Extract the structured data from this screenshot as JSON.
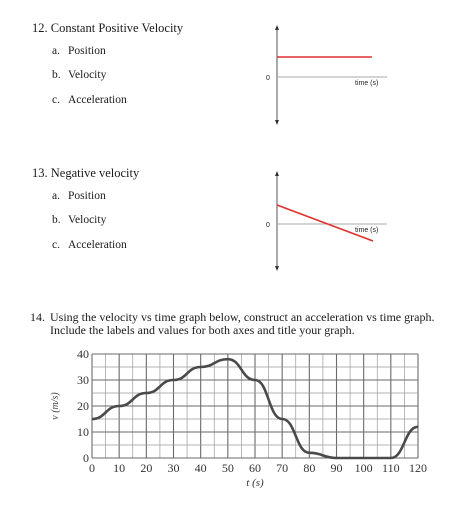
{
  "q12": {
    "title": "12. Constant Positive Velocity",
    "items": [
      {
        "letter": "a.",
        "text": "Position"
      },
      {
        "letter": "b.",
        "text": "Velocity"
      },
      {
        "letter": "c.",
        "text": "Acceleration"
      }
    ],
    "graph": {
      "origin_label": "0",
      "axis_label": "time (s)",
      "line_color": "#e03030"
    }
  },
  "q13": {
    "title": "13. Negative velocity",
    "items": [
      {
        "letter": "a.",
        "text": "Position"
      },
      {
        "letter": "b.",
        "text": "Velocity"
      },
      {
        "letter": "c.",
        "text": "Acceleration"
      }
    ],
    "graph": {
      "origin_label": "0",
      "axis_label": "time (s)",
      "line_color": "#e03030"
    }
  },
  "q14": {
    "number": "14.",
    "text": "Using the velocity vs time graph below, construct an acceleration vs time graph.  Include the labels and values for both axes and title your graph."
  },
  "chart_data": {
    "type": "line",
    "xlabel": "t (s)",
    "ylabel": "v (m/s)",
    "xlim": [
      0,
      120
    ],
    "ylim": [
      0,
      40
    ],
    "x_ticks": [
      "0",
      "10",
      "20",
      "30",
      "40",
      "50",
      "60",
      "70",
      "80",
      "90",
      "100",
      "110",
      "120"
    ],
    "y_ticks": [
      "0",
      "10",
      "20",
      "30",
      "40"
    ],
    "grid": true,
    "series": [
      {
        "x": [
          0,
          10,
          20,
          30,
          40,
          50,
          60,
          70,
          80,
          90,
          100,
          110,
          120
        ],
        "y": [
          15,
          20,
          25,
          30,
          35,
          38,
          30,
          15,
          2,
          0,
          0,
          0,
          12
        ]
      }
    ]
  }
}
